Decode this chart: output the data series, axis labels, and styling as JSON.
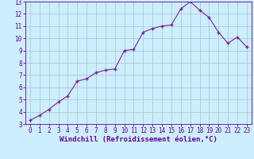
{
  "x": [
    0,
    1,
    2,
    3,
    4,
    5,
    6,
    7,
    8,
    9,
    10,
    11,
    12,
    13,
    14,
    15,
    16,
    17,
    18,
    19,
    20,
    21,
    22,
    23
  ],
  "y": [
    3.3,
    3.7,
    4.2,
    4.8,
    5.3,
    6.5,
    6.7,
    7.2,
    7.4,
    7.5,
    9.0,
    9.1,
    10.5,
    10.8,
    11.0,
    11.1,
    12.4,
    13.0,
    12.3,
    11.7,
    10.5,
    9.6,
    10.1,
    9.3
  ],
  "line_color": "#7B1FA2",
  "marker": "+",
  "marker_color": "#7B1FA2",
  "bg_color": "#cceeff",
  "grid_color": "#aacccc",
  "xlabel": "Windchill (Refroidissement éolien,°C)",
  "xlim": [
    -0.5,
    23.5
  ],
  "ylim": [
    3,
    13
  ],
  "xticks": [
    0,
    1,
    2,
    3,
    4,
    5,
    6,
    7,
    8,
    9,
    10,
    11,
    12,
    13,
    14,
    15,
    16,
    17,
    18,
    19,
    20,
    21,
    22,
    23
  ],
  "yticks": [
    3,
    4,
    5,
    6,
    7,
    8,
    9,
    10,
    11,
    12,
    13
  ],
  "tick_fontsize": 5.5,
  "xlabel_fontsize": 6.5,
  "axis_color": "#660099",
  "spine_color": "#660099"
}
